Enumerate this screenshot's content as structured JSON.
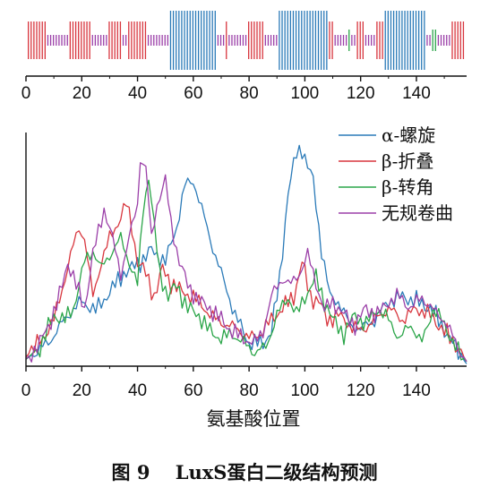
{
  "caption": "图 9　 LuxS蛋白二级结构预测",
  "colors": {
    "helix": "#2a7ab8",
    "strand": "#d8363e",
    "turn": "#2aa548",
    "coil": "#9b3fa8",
    "axis": "#111111"
  },
  "chart_data": [
    {
      "type": "bar",
      "title": "",
      "xlabel": "",
      "ylabel": "",
      "xlim": [
        0,
        158
      ],
      "xticks": [
        "0",
        "20",
        "40",
        "60",
        "80",
        "100",
        "120",
        "140"
      ],
      "segments": [
        {
          "start": 1,
          "end": 7,
          "type": "strand"
        },
        {
          "start": 8,
          "end": 15,
          "type": "coil"
        },
        {
          "start": 16,
          "end": 23,
          "type": "strand"
        },
        {
          "start": 24,
          "end": 29,
          "type": "coil"
        },
        {
          "start": 30,
          "end": 34,
          "type": "strand"
        },
        {
          "start": 35,
          "end": 36,
          "type": "coil"
        },
        {
          "start": 37,
          "end": 43,
          "type": "strand"
        },
        {
          "start": 44,
          "end": 51,
          "type": "coil"
        },
        {
          "start": 52,
          "end": 68,
          "type": "helix"
        },
        {
          "start": 69,
          "end": 71,
          "type": "coil"
        },
        {
          "start": 72,
          "end": 72,
          "type": "strand"
        },
        {
          "start": 73,
          "end": 79,
          "type": "coil"
        },
        {
          "start": 80,
          "end": 85,
          "type": "strand"
        },
        {
          "start": 86,
          "end": 90,
          "type": "coil"
        },
        {
          "start": 91,
          "end": 108,
          "type": "helix"
        },
        {
          "start": 109,
          "end": 110,
          "type": "strand"
        },
        {
          "start": 111,
          "end": 115,
          "type": "coil"
        },
        {
          "start": 116,
          "end": 116,
          "type": "turn"
        },
        {
          "start": 117,
          "end": 118,
          "type": "coil"
        },
        {
          "start": 119,
          "end": 121,
          "type": "strand"
        },
        {
          "start": 122,
          "end": 125,
          "type": "coil"
        },
        {
          "start": 126,
          "end": 128,
          "type": "strand"
        },
        {
          "start": 129,
          "end": 143,
          "type": "helix"
        },
        {
          "start": 144,
          "end": 145,
          "type": "coil"
        },
        {
          "start": 146,
          "end": 147,
          "type": "turn"
        },
        {
          "start": 148,
          "end": 152,
          "type": "coil"
        },
        {
          "start": 153,
          "end": 157,
          "type": "strand"
        }
      ]
    },
    {
      "type": "line",
      "title": "",
      "xlabel": "氨基酸位置",
      "ylabel": "",
      "xlim": [
        0,
        158
      ],
      "ylim": [
        0,
        1
      ],
      "xticks": [
        "0",
        "20",
        "40",
        "60",
        "80",
        "100",
        "120",
        "140"
      ],
      "legend_position": "top-right",
      "series": [
        {
          "name": "α-螺旋",
          "key": "helix",
          "points": [
            [
              0,
              0.03
            ],
            [
              8,
              0.1
            ],
            [
              15,
              0.22
            ],
            [
              20,
              0.28
            ],
            [
              25,
              0.24
            ],
            [
              30,
              0.32
            ],
            [
              35,
              0.4
            ],
            [
              40,
              0.44
            ],
            [
              45,
              0.5
            ],
            [
              50,
              0.45
            ],
            [
              54,
              0.6
            ],
            [
              57,
              0.78
            ],
            [
              60,
              0.8
            ],
            [
              63,
              0.68
            ],
            [
              66,
              0.55
            ],
            [
              70,
              0.4
            ],
            [
              75,
              0.22
            ],
            [
              80,
              0.1
            ],
            [
              85,
              0.1
            ],
            [
              88,
              0.15
            ],
            [
              91,
              0.38
            ],
            [
              94,
              0.75
            ],
            [
              97,
              0.92
            ],
            [
              99,
              0.94
            ],
            [
              101,
              0.86
            ],
            [
              103,
              0.8
            ],
            [
              106,
              0.5
            ],
            [
              109,
              0.3
            ],
            [
              112,
              0.28
            ],
            [
              116,
              0.18
            ],
            [
              120,
              0.16
            ],
            [
              125,
              0.2
            ],
            [
              130,
              0.28
            ],
            [
              135,
              0.3
            ],
            [
              140,
              0.28
            ],
            [
              145,
              0.25
            ],
            [
              150,
              0.16
            ],
            [
              155,
              0.06
            ],
            [
              158,
              0.01
            ]
          ]
        },
        {
          "name": "β-折叠",
          "key": "strand",
          "points": [
            [
              0,
              0.04
            ],
            [
              6,
              0.12
            ],
            [
              10,
              0.2
            ],
            [
              14,
              0.38
            ],
            [
              17,
              0.52
            ],
            [
              19,
              0.6
            ],
            [
              21,
              0.55
            ],
            [
              24,
              0.3
            ],
            [
              27,
              0.45
            ],
            [
              30,
              0.55
            ],
            [
              33,
              0.62
            ],
            [
              36,
              0.7
            ],
            [
              38,
              0.6
            ],
            [
              40,
              0.45
            ],
            [
              43,
              0.4
            ],
            [
              46,
              0.3
            ],
            [
              49,
              0.42
            ],
            [
              52,
              0.36
            ],
            [
              56,
              0.32
            ],
            [
              60,
              0.3
            ],
            [
              64,
              0.25
            ],
            [
              68,
              0.2
            ],
            [
              72,
              0.18
            ],
            [
              76,
              0.16
            ],
            [
              80,
              0.12
            ],
            [
              84,
              0.14
            ],
            [
              88,
              0.2
            ],
            [
              92,
              0.25
            ],
            [
              96,
              0.3
            ],
            [
              99,
              0.45
            ],
            [
              102,
              0.3
            ],
            [
              105,
              0.28
            ],
            [
              108,
              0.2
            ],
            [
              112,
              0.22
            ],
            [
              116,
              0.18
            ],
            [
              120,
              0.15
            ],
            [
              125,
              0.2
            ],
            [
              130,
              0.25
            ],
            [
              135,
              0.2
            ],
            [
              140,
              0.25
            ],
            [
              145,
              0.22
            ],
            [
              150,
              0.15
            ],
            [
              155,
              0.08
            ],
            [
              158,
              0.02
            ]
          ]
        },
        {
          "name": "β-转角",
          "key": "turn",
          "points": [
            [
              0,
              0.03
            ],
            [
              5,
              0.08
            ],
            [
              10,
              0.22
            ],
            [
              14,
              0.2
            ],
            [
              17,
              0.25
            ],
            [
              21,
              0.45
            ],
            [
              24,
              0.5
            ],
            [
              27,
              0.42
            ],
            [
              30,
              0.48
            ],
            [
              34,
              0.55
            ],
            [
              37,
              0.45
            ],
            [
              40,
              0.35
            ],
            [
              42,
              0.68
            ],
            [
              44,
              0.82
            ],
            [
              46,
              0.6
            ],
            [
              48,
              0.4
            ],
            [
              51,
              0.3
            ],
            [
              54,
              0.35
            ],
            [
              58,
              0.25
            ],
            [
              62,
              0.22
            ],
            [
              66,
              0.15
            ],
            [
              70,
              0.12
            ],
            [
              74,
              0.14
            ],
            [
              78,
              0.1
            ],
            [
              82,
              0.06
            ],
            [
              86,
              0.08
            ],
            [
              90,
              0.22
            ],
            [
              94,
              0.3
            ],
            [
              97,
              0.22
            ],
            [
              100,
              0.3
            ],
            [
              104,
              0.38
            ],
            [
              107,
              0.28
            ],
            [
              110,
              0.2
            ],
            [
              114,
              0.14
            ],
            [
              118,
              0.22
            ],
            [
              122,
              0.18
            ],
            [
              126,
              0.25
            ],
            [
              130,
              0.2
            ],
            [
              134,
              0.12
            ],
            [
              138,
              0.18
            ],
            [
              142,
              0.1
            ],
            [
              146,
              0.25
            ],
            [
              150,
              0.18
            ],
            [
              155,
              0.06
            ],
            [
              158,
              0.02
            ]
          ]
        },
        {
          "name": "无规卷曲",
          "key": "coil",
          "points": [
            [
              0,
              0.03
            ],
            [
              5,
              0.1
            ],
            [
              9,
              0.2
            ],
            [
              12,
              0.3
            ],
            [
              15,
              0.45
            ],
            [
              18,
              0.35
            ],
            [
              21,
              0.25
            ],
            [
              24,
              0.48
            ],
            [
              28,
              0.68
            ],
            [
              31,
              0.55
            ],
            [
              34,
              0.4
            ],
            [
              37,
              0.55
            ],
            [
              40,
              0.7
            ],
            [
              41,
              0.9
            ],
            [
              43,
              0.85
            ],
            [
              45,
              0.55
            ],
            [
              47,
              0.7
            ],
            [
              50,
              0.8
            ],
            [
              52,
              0.62
            ],
            [
              55,
              0.45
            ],
            [
              58,
              0.35
            ],
            [
              62,
              0.28
            ],
            [
              66,
              0.25
            ],
            [
              70,
              0.2
            ],
            [
              74,
              0.15
            ],
            [
              78,
              0.12
            ],
            [
              82,
              0.1
            ],
            [
              85,
              0.15
            ],
            [
              88,
              0.3
            ],
            [
              92,
              0.38
            ],
            [
              95,
              0.35
            ],
            [
              98,
              0.4
            ],
            [
              101,
              0.48
            ],
            [
              104,
              0.36
            ],
            [
              107,
              0.24
            ],
            [
              110,
              0.28
            ],
            [
              114,
              0.22
            ],
            [
              118,
              0.18
            ],
            [
              122,
              0.25
            ],
            [
              126,
              0.22
            ],
            [
              130,
              0.28
            ],
            [
              134,
              0.3
            ],
            [
              138,
              0.25
            ],
            [
              142,
              0.3
            ],
            [
              146,
              0.24
            ],
            [
              150,
              0.2
            ],
            [
              155,
              0.08
            ],
            [
              158,
              0.02
            ]
          ]
        }
      ]
    }
  ]
}
